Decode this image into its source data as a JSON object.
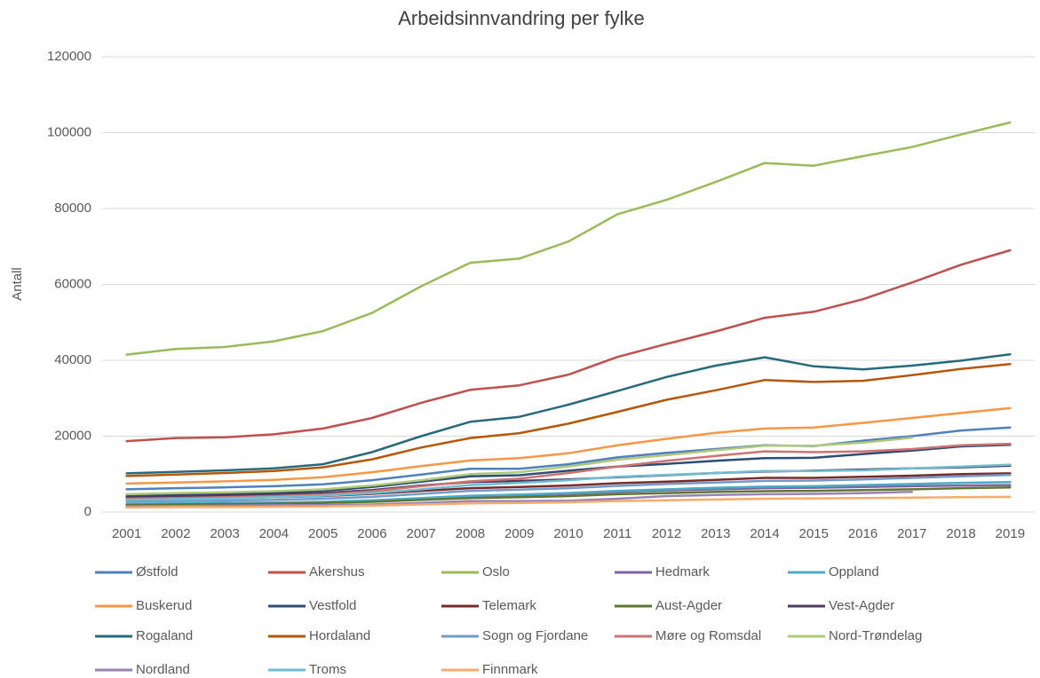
{
  "chart_data": {
    "type": "line",
    "title": "Arbeidsinnvandring per fylke",
    "y_label": "Antall",
    "categories": [
      "2001",
      "2002",
      "2003",
      "2004",
      "2005",
      "2006",
      "2007",
      "2008",
      "2009",
      "2010",
      "2011",
      "2012",
      "2013",
      "2014",
      "2015",
      "2016",
      "2017",
      "2018",
      "2019"
    ],
    "ylim": [
      0,
      120000
    ],
    "yticks": [
      0,
      20000,
      40000,
      60000,
      80000,
      100000,
      120000
    ],
    "grid": true,
    "series": [
      {
        "name": "Østfold",
        "color": "#4f81bd",
        "values": [
          6000,
          6300,
          6500,
          6800,
          7300,
          8400,
          9900,
          11400,
          11400,
          12600,
          14400,
          15600,
          16600,
          17600,
          17400,
          18800,
          20000,
          21500,
          22300
        ]
      },
      {
        "name": "Akershus",
        "color": "#c0504d",
        "values": [
          18700,
          19500,
          19700,
          20500,
          22000,
          24800,
          28800,
          32200,
          33400,
          36200,
          40900,
          44300,
          47600,
          51200,
          52800,
          56100,
          60500,
          65200,
          69000
        ]
      },
      {
        "name": "Oslo",
        "color": "#9bbb59",
        "values": [
          41500,
          43000,
          43500,
          45000,
          47700,
          52500,
          59500,
          65700,
          66800,
          71300,
          78500,
          82300,
          87000,
          92000,
          91300,
          93800,
          96200,
          99500,
          102700
        ]
      },
      {
        "name": "Hedmark",
        "color": "#8064a2",
        "values": [
          2000,
          2100,
          2200,
          2300,
          2500,
          2900,
          3500,
          4100,
          4400,
          4800,
          5300,
          5700,
          6000,
          6300,
          6400,
          6600,
          6800,
          7000,
          7100
        ]
      },
      {
        "name": "Oppland",
        "color": "#4bacc6",
        "values": [
          2200,
          2300,
          2400,
          2500,
          2700,
          3100,
          3700,
          4300,
          4600,
          5000,
          5600,
          6000,
          6400,
          6700,
          6800,
          7100,
          7400,
          7700,
          7900
        ]
      },
      {
        "name": "Buskerud",
        "color": "#f79646",
        "values": [
          7500,
          7800,
          8100,
          8500,
          9200,
          10500,
          12100,
          13600,
          14200,
          15500,
          17600,
          19300,
          20900,
          22000,
          22300,
          23500,
          24800,
          26100,
          27400
        ]
      },
      {
        "name": "Vestfold",
        "color": "#2c4d75",
        "values": [
          4500,
          4700,
          4900,
          5100,
          5600,
          6600,
          8000,
          9400,
          9700,
          10900,
          12000,
          12700,
          13500,
          14200,
          14300,
          15300,
          16200,
          17300,
          17700
        ]
      },
      {
        "name": "Telemark",
        "color": "#772c2a",
        "values": [
          3500,
          3600,
          3700,
          3900,
          4200,
          4800,
          5600,
          6300,
          6600,
          7000,
          7600,
          8000,
          8500,
          9000,
          9000,
          9300,
          9600,
          10000,
          10200
        ]
      },
      {
        "name": "Aust-Agder",
        "color": "#5f7530",
        "values": [
          1900,
          2000,
          2100,
          2200,
          2400,
          2700,
          3200,
          3700,
          3900,
          4200,
          4700,
          5000,
          5300,
          5500,
          5600,
          5800,
          6000,
          6300,
          6500
        ]
      },
      {
        "name": "Vest-Agder",
        "color": "#4d3b62",
        "values": [
          4000,
          4200,
          4400,
          4600,
          5000,
          5800,
          7000,
          7900,
          8200,
          8600,
          9200,
          9700,
          10300,
          10700,
          10900,
          11200,
          11500,
          11800,
          12200
        ]
      },
      {
        "name": "Rogaland",
        "color": "#276a7c",
        "values": [
          10200,
          10600,
          11000,
          11500,
          12600,
          15800,
          20000,
          23800,
          25100,
          28300,
          31900,
          35600,
          38600,
          40800,
          38400,
          37600,
          38600,
          39900,
          41600
        ]
      },
      {
        "name": "Hordaland",
        "color": "#b65708",
        "values": [
          9500,
          9900,
          10300,
          10800,
          11800,
          13900,
          17000,
          19500,
          20800,
          23300,
          26400,
          29600,
          32100,
          34800,
          34300,
          34600,
          36100,
          37700,
          39000
        ]
      },
      {
        "name": "Sogn og Fjordane",
        "color": "#729aca",
        "values": [
          2800,
          2900,
          3000,
          3200,
          3500,
          4000,
          4800,
          5600,
          5900,
          6300,
          6900,
          7400,
          7800,
          8200,
          8300,
          8600,
          9000,
          9400,
          9800
        ]
      },
      {
        "name": "Møre og Romsdal",
        "color": "#cd7371",
        "values": [
          3500,
          3700,
          3900,
          4200,
          4600,
          5500,
          6800,
          8100,
          8800,
          10300,
          12000,
          13500,
          14800,
          16000,
          15800,
          16000,
          16600,
          17600,
          18000
        ]
      },
      {
        "name": "Nord-Trøndelag",
        "color": "#afc97a",
        "values": [
          4700,
          5000,
          5200,
          5500,
          6000,
          7000,
          8400,
          10000,
          10500,
          12000,
          13800,
          15000,
          16300,
          17500,
          17500,
          18300,
          19600,
          null,
          null
        ]
      },
      {
        "name": "Nordland",
        "color": "#9983b5",
        "values": [
          1500,
          1600,
          1700,
          1800,
          1800,
          2000,
          2400,
          2900,
          2900,
          3000,
          3500,
          4200,
          4500,
          4700,
          4800,
          5000,
          5300,
          null,
          null
        ]
      },
      {
        "name": "Troms",
        "color": "#6fbdd1",
        "values": [
          3200,
          3400,
          3600,
          3900,
          4300,
          5000,
          6000,
          7100,
          7700,
          8400,
          9300,
          9800,
          10300,
          10800,
          10800,
          11000,
          11500,
          12000,
          12500
        ]
      },
      {
        "name": "Finnmark",
        "color": "#f9ab6b",
        "values": [
          1200,
          1300,
          1300,
          1400,
          1500,
          1700,
          2000,
          2300,
          2400,
          2600,
          2900,
          3100,
          3300,
          3500,
          3600,
          3700,
          3800,
          3900,
          4000
        ]
      }
    ]
  }
}
